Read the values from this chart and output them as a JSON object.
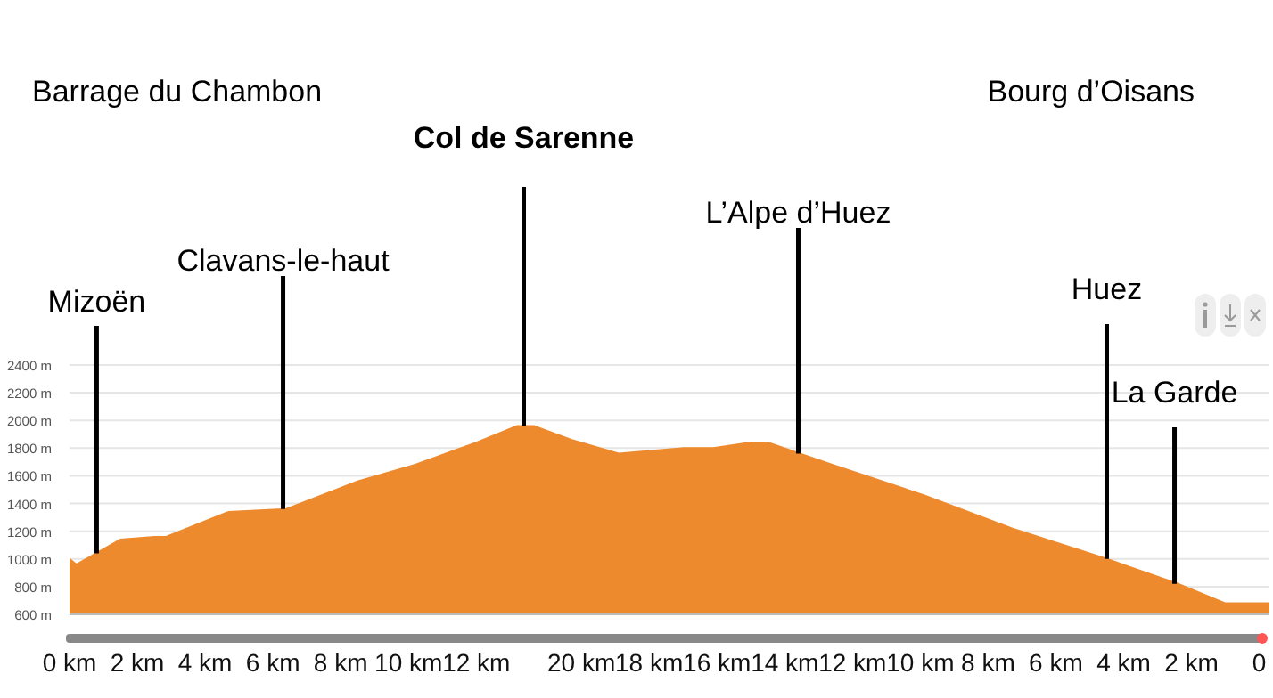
{
  "chart_data": {
    "type": "area",
    "x": [
      0,
      0.2,
      1.5,
      2.5,
      2.85,
      4.7,
      6.4,
      8.5,
      10.2,
      12,
      13.2,
      13.7,
      14.8,
      16.2,
      18.1,
      19,
      20.1,
      20.6,
      22.5,
      25.2,
      27.8,
      30.6,
      32.7,
      34.1,
      34.3,
      35.4
    ],
    "series": [
      {
        "color": "#ee8a2e",
        "values": [
          1000,
          960,
          1140,
          1160,
          1160,
          1340,
          1360,
          1560,
          1680,
          1840,
          1960,
          1960,
          1860,
          1760,
          1800,
          1800,
          1840,
          1840,
          1680,
          1460,
          1220,
          1000,
          820,
          680,
          680,
          680
        ]
      }
    ],
    "xlim": [
      0,
      35.4
    ],
    "xticks": [
      {
        "value": 0,
        "label": "0 km"
      },
      {
        "value": 2,
        "label": "2 km"
      },
      {
        "value": 4,
        "label": "4 km"
      },
      {
        "value": 6,
        "label": "6 km"
      },
      {
        "value": 8,
        "label": "8 km"
      },
      {
        "value": 10,
        "label": "10 km"
      },
      {
        "value": 12,
        "label": "12 km"
      }
    ],
    "x2lim": [
      35.1,
      -0.3
    ],
    "x2ticks": [
      {
        "value": 20,
        "label": "20 km"
      },
      {
        "value": 18,
        "label": "18 km"
      },
      {
        "value": 16,
        "label": "16 km"
      },
      {
        "value": 14,
        "label": "14 km"
      },
      {
        "value": 12,
        "label": "12 km"
      },
      {
        "value": 10,
        "label": "10 km"
      },
      {
        "value": 8,
        "label": "8 km"
      },
      {
        "value": 6,
        "label": "6 km"
      },
      {
        "value": 4,
        "label": "4 km"
      },
      {
        "value": 2,
        "label": "2 km"
      },
      0
    ],
    "ylim": [
      600,
      2400
    ],
    "yticks": [
      {
        "value": 600,
        "label": "600 m"
      },
      {
        "value": 800,
        "label": "800 m"
      },
      {
        "value": 1000,
        "label": "1000 m"
      },
      {
        "value": 1200,
        "label": "1200 m"
      },
      {
        "value": 1400,
        "label": "1400 m"
      },
      {
        "value": 1600,
        "label": "1600 m"
      },
      {
        "value": 1800,
        "label": "1800 m"
      },
      {
        "value": 2000,
        "label": "2000 m"
      },
      {
        "value": 2200,
        "label": "2200 m"
      },
      {
        "value": 2400,
        "label": "2400 m"
      }
    ],
    "grid": "y",
    "annotations": [
      "Barrage du Chambon",
      {
        "text": "Mizoën",
        "x": 0.8,
        "y": 1040
      },
      {
        "text": "Clavans-le-haut",
        "x": 6.3,
        "y": 1360
      },
      {
        "text": "Col de Sarenne",
        "x": 13.4,
        "y": 1960
      },
      {
        "text": "L’Alpe d’Huez",
        "x": 21.5,
        "y": 1760
      },
      {
        "text": "Huez",
        "x": 30.6,
        "y": 1000
      },
      {
        "text": "La Garde",
        "x": 32.6,
        "y": 820
      },
      "Bourg d’Oisans"
    ]
  }
}
